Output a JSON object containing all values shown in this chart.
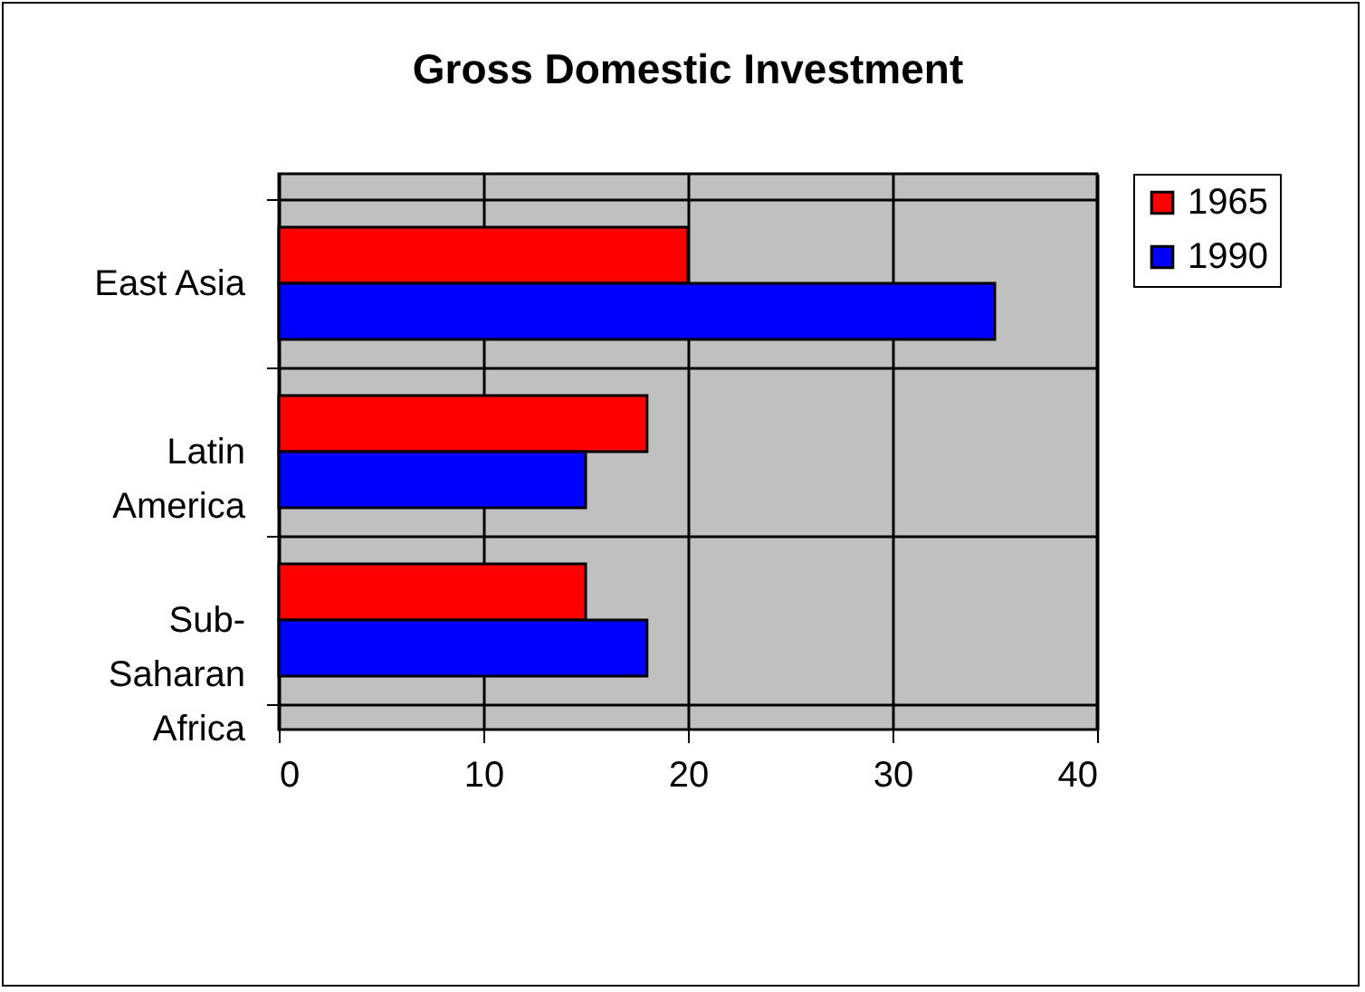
{
  "chart_data": {
    "type": "bar",
    "title": "Gross Domestic Investment",
    "orientation": "horizontal",
    "categories": [
      "East Asia",
      "Latin America",
      "Sub-Saharan Africa"
    ],
    "series": [
      {
        "name": "1965",
        "color": "#ff0000",
        "values": [
          20,
          18,
          15
        ]
      },
      {
        "name": "1990",
        "color": "#0000ff",
        "values": [
          35,
          15,
          18
        ]
      }
    ],
    "xlim": [
      0,
      40
    ],
    "xticks": [
      0,
      10,
      20,
      30,
      40
    ],
    "grid": true,
    "legend": "right"
  }
}
